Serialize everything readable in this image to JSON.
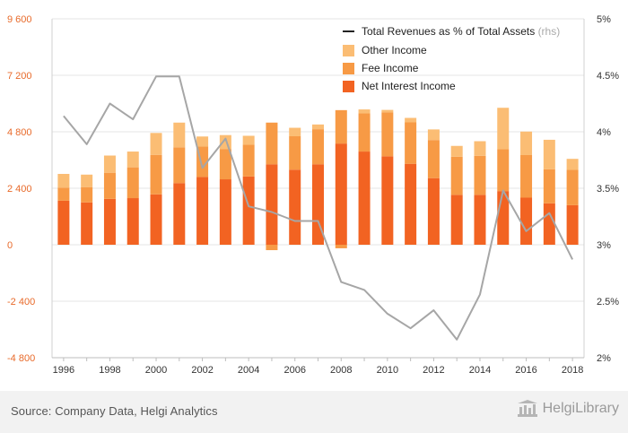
{
  "footer": {
    "source": "Source: Company Data, Helgi Analytics",
    "brand": "HelgiLibrary"
  },
  "colors": {
    "net_interest": "#f26322",
    "fee_income": "#f79a45",
    "other_income": "#fbbd74",
    "line": "#a6a6a6",
    "left_ticks": "#e86a2a",
    "right_ticks": "#333333",
    "grid": "#e6e6e6"
  },
  "chart_data": {
    "type": "bar",
    "stacked": true,
    "categories": [
      "1996",
      "1997",
      "1998",
      "1999",
      "2000",
      "2001",
      "2002",
      "2003",
      "2004",
      "2005",
      "2006",
      "2007",
      "2008",
      "2009",
      "2010",
      "2011",
      "2012",
      "2013",
      "2014",
      "2015",
      "2016",
      "2017",
      "2018"
    ],
    "x_tick_labels": [
      "1996",
      "1998",
      "2000",
      "2002",
      "2004",
      "2006",
      "2008",
      "2010",
      "2012",
      "2014",
      "2016",
      "2018"
    ],
    "series": [
      {
        "name": "Net Interest Income",
        "values": [
          1870,
          1800,
          1950,
          1980,
          2140,
          2620,
          2880,
          2780,
          2900,
          3420,
          3190,
          3420,
          4300,
          3960,
          3760,
          3440,
          2830,
          2120,
          2120,
          2280,
          2000,
          1760,
          1680
        ]
      },
      {
        "name": "Fee Income",
        "values": [
          560,
          650,
          1110,
          1310,
          1680,
          1520,
          1290,
          1290,
          1350,
          1770,
          1420,
          1490,
          1420,
          1620,
          1870,
          1760,
          1620,
          1620,
          1660,
          1780,
          1810,
          1450,
          1500
        ]
      },
      {
        "name": "Other Income",
        "values": [
          580,
          530,
          730,
          670,
          930,
          1050,
          430,
          590,
          380,
          0,
          360,
          200,
          0,
          170,
          100,
          190,
          450,
          460,
          620,
          1760,
          1000,
          1250,
          470
        ]
      }
    ],
    "negative_other": [
      0,
      0,
      0,
      0,
      0,
      0,
      0,
      0,
      0,
      -230,
      0,
      0,
      -150,
      0,
      0,
      0,
      0,
      0,
      0,
      0,
      0,
      0,
      0
    ],
    "line_series": {
      "name": "Total Revenues as % of Total Assets",
      "suffix": "(rhs)",
      "axis": "right",
      "values": [
        4.14,
        3.89,
        4.25,
        4.11,
        4.49,
        4.49,
        3.68,
        3.94,
        3.34,
        3.29,
        3.21,
        3.21,
        2.67,
        2.6,
        2.39,
        2.26,
        2.42,
        2.16,
        2.56,
        3.48,
        3.12,
        3.28,
        2.87
      ]
    },
    "y_left": {
      "min": -4800,
      "max": 9600,
      "ticks": [
        9600,
        7200,
        4800,
        2400,
        0,
        -2400,
        -4800
      ],
      "tick_labels": [
        "9 600",
        "7 200",
        "4 800",
        "2 400",
        "0",
        "-2 400",
        "-4 800"
      ]
    },
    "y_right": {
      "min": 2,
      "max": 5,
      "ticks": [
        5,
        4.5,
        4,
        3.5,
        3,
        2.5,
        2
      ],
      "tick_labels": [
        "5%",
        "4.5%",
        "4%",
        "3.5%",
        "3%",
        "2.5%",
        "2%"
      ]
    },
    "legend_position": "top-right",
    "grid": true
  }
}
